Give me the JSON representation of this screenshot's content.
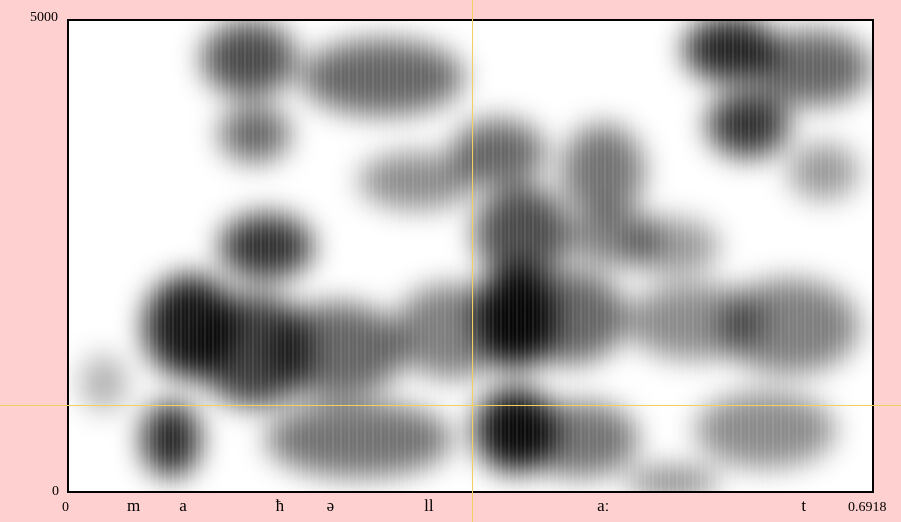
{
  "chart_data": {
    "type": "heatmap",
    "title": "",
    "ylabel": "",
    "xlabel": "",
    "x_tick_labels": [
      "0",
      "0.6918"
    ],
    "y_tick_labels": [
      "0",
      "5000"
    ],
    "xlim": [
      0,
      0.6918
    ],
    "ylim": [
      0,
      5000
    ],
    "colormap": [
      "#ffffff",
      "#000000"
    ],
    "segments": [
      {
        "label": "m",
        "t": 0.05
      },
      {
        "label": "a",
        "t": 0.095
      },
      {
        "label": "ħ",
        "t": 0.178
      },
      {
        "label": "ə",
        "t": 0.222
      },
      {
        "label": "ll",
        "t": 0.306
      },
      {
        "label": "aː",
        "t": 0.455
      },
      {
        "label": "t",
        "t": 0.631
      }
    ],
    "energy_blobs": [
      {
        "t": 0.088,
        "f": 550,
        "dt": 0.025,
        "df": 400,
        "v": 0.85
      },
      {
        "t": 0.105,
        "f": 1750,
        "dt": 0.04,
        "df": 550,
        "v": 0.9
      },
      {
        "t": 0.16,
        "f": 1500,
        "dt": 0.05,
        "df": 600,
        "v": 0.75
      },
      {
        "t": 0.17,
        "f": 2600,
        "dt": 0.04,
        "df": 350,
        "v": 0.8
      },
      {
        "t": 0.155,
        "f": 4600,
        "dt": 0.04,
        "df": 400,
        "v": 0.7
      },
      {
        "t": 0.16,
        "f": 3800,
        "dt": 0.03,
        "df": 300,
        "v": 0.6
      },
      {
        "t": 0.23,
        "f": 1500,
        "dt": 0.06,
        "df": 500,
        "v": 0.6
      },
      {
        "t": 0.25,
        "f": 550,
        "dt": 0.08,
        "df": 400,
        "v": 0.55
      },
      {
        "t": 0.27,
        "f": 4400,
        "dt": 0.07,
        "df": 400,
        "v": 0.6
      },
      {
        "t": 0.3,
        "f": 3300,
        "dt": 0.05,
        "df": 300,
        "v": 0.45
      },
      {
        "t": 0.33,
        "f": 1700,
        "dt": 0.05,
        "df": 500,
        "v": 0.5
      },
      {
        "t": 0.385,
        "f": 1850,
        "dt": 0.035,
        "df": 550,
        "v": 0.95
      },
      {
        "t": 0.385,
        "f": 650,
        "dt": 0.035,
        "df": 450,
        "v": 0.95
      },
      {
        "t": 0.39,
        "f": 2750,
        "dt": 0.04,
        "df": 500,
        "v": 0.7
      },
      {
        "t": 0.37,
        "f": 3600,
        "dt": 0.04,
        "df": 350,
        "v": 0.6
      },
      {
        "t": 0.43,
        "f": 1850,
        "dt": 0.05,
        "df": 500,
        "v": 0.6
      },
      {
        "t": 0.44,
        "f": 550,
        "dt": 0.05,
        "df": 400,
        "v": 0.55
      },
      {
        "t": 0.46,
        "f": 3400,
        "dt": 0.035,
        "df": 500,
        "v": 0.55
      },
      {
        "t": 0.47,
        "f": 2700,
        "dt": 0.04,
        "df": 300,
        "v": 0.5
      },
      {
        "t": 0.52,
        "f": 2600,
        "dt": 0.04,
        "df": 300,
        "v": 0.4
      },
      {
        "t": 0.54,
        "f": 1800,
        "dt": 0.06,
        "df": 400,
        "v": 0.45
      },
      {
        "t": 0.57,
        "f": 4700,
        "dt": 0.04,
        "df": 350,
        "v": 0.85
      },
      {
        "t": 0.585,
        "f": 3900,
        "dt": 0.035,
        "df": 350,
        "v": 0.8
      },
      {
        "t": 0.64,
        "f": 4500,
        "dt": 0.05,
        "df": 400,
        "v": 0.6
      },
      {
        "t": 0.65,
        "f": 3400,
        "dt": 0.03,
        "df": 300,
        "v": 0.4
      },
      {
        "t": 0.62,
        "f": 1750,
        "dt": 0.06,
        "df": 500,
        "v": 0.5
      },
      {
        "t": 0.6,
        "f": 650,
        "dt": 0.06,
        "df": 400,
        "v": 0.45
      },
      {
        "t": 0.03,
        "f": 1150,
        "dt": 0.02,
        "df": 300,
        "v": 0.3
      },
      {
        "t": 0.52,
        "f": 100,
        "dt": 0.04,
        "df": 150,
        "v": 0.5
      }
    ]
  }
}
